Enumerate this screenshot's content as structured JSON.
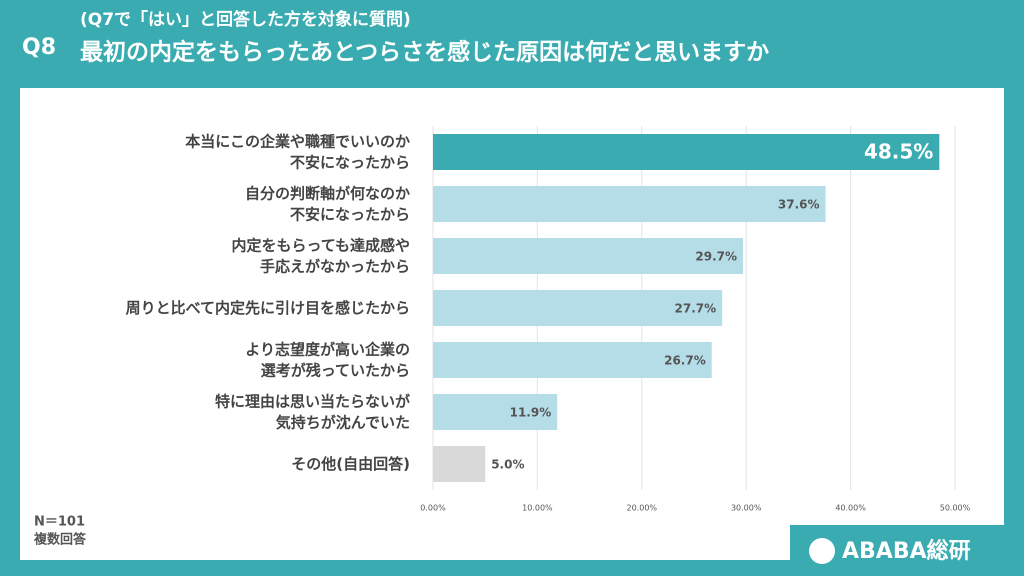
{
  "header": {
    "question": "Q8",
    "subtitle": "(Q7で「はい」と回答した方を対象に質問)",
    "title": "最初の内定をもらったあとつらさを感じた原因は何だと思いますか"
  },
  "chart_data": {
    "type": "bar",
    "orientation": "horizontal",
    "categories": [
      [
        "本当にこの企業や職種でいいのか",
        "不安になったから"
      ],
      [
        "自分の判断軸が何なのか",
        "不安になったから"
      ],
      [
        "内定をもらっても達成感や",
        "手応えがなかったから"
      ],
      [
        "周りと比べて内定先に引け目を感じたから"
      ],
      [
        "より志望度が高い企業の",
        "選考が残っていたから"
      ],
      [
        "特に理由は思い当たらないが",
        "気持ちが沈んでいた"
      ],
      [
        "その他(自由回答)"
      ]
    ],
    "values": [
      48.5,
      37.6,
      29.7,
      27.7,
      26.7,
      11.9,
      5.0
    ],
    "value_labels": [
      "48.5%",
      "37.6%",
      "29.7%",
      "27.7%",
      "26.7%",
      "11.9%",
      "5.0%"
    ],
    "colors": [
      "#3aacb1",
      "#b5dde7",
      "#b5dde7",
      "#b5dde7",
      "#b5dde7",
      "#b5dde7",
      "#d9d9d9"
    ],
    "xlim": [
      0,
      50
    ],
    "xticks": [
      {
        "value": 0,
        "label": "0.00%"
      },
      {
        "value": 10,
        "label": "10.00%"
      },
      {
        "value": 20,
        "label": "20.00%"
      },
      {
        "value": 30,
        "label": "30.00%"
      },
      {
        "value": 40,
        "label": "40.00%"
      },
      {
        "value": 50,
        "label": "50.00%"
      }
    ],
    "grid": true
  },
  "footer": {
    "sample": "N＝101",
    "note": "複数回答",
    "logo": "ABABA総研"
  }
}
